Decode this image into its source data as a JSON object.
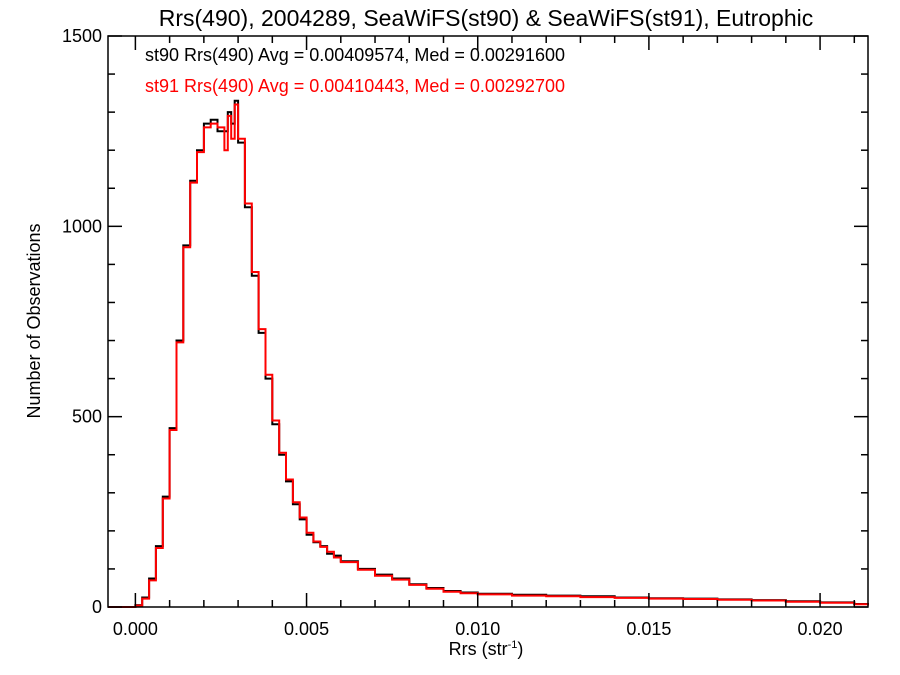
{
  "chart_data": {
    "type": "line",
    "title": "Rrs(490), 2004289, SeaWiFS(st90) & SeaWiFS(st91), Eutrophic",
    "xlabel": "Rrs (str",
    "xlabel_sup": "-1",
    "xlabel_close": ")",
    "ylabel": "Number of Observations",
    "xlim": [
      -0.0008,
      0.0214
    ],
    "ylim": [
      0,
      1500
    ],
    "x_ticks": [
      0.0,
      0.005,
      0.01,
      0.015,
      0.02
    ],
    "x_tick_labels": [
      "0.000",
      "0.005",
      "0.010",
      "0.015",
      "0.020"
    ],
    "y_ticks": [
      0,
      500,
      1000,
      1500
    ],
    "y_tick_labels": [
      "0",
      "500",
      "1000",
      "1500"
    ],
    "grid": false,
    "step": "histogram",
    "annotations": [
      {
        "text": "st90 Rrs(490) Avg = 0.00409574, Med = 0.00291600",
        "color": "#000000"
      },
      {
        "text": "st91 Rrs(490) Avg = 0.00410443, Med = 0.00292700",
        "color": "#ff0000"
      }
    ],
    "series": [
      {
        "color": "#000000",
        "x": [
          -0.0008,
          -0.0004,
          0.0,
          0.0002,
          0.0004,
          0.0006,
          0.0008,
          0.001,
          0.0012,
          0.0014,
          0.0016,
          0.0018,
          0.002,
          0.0022,
          0.0024,
          0.0026,
          0.0027,
          0.0028,
          0.0029,
          0.003,
          0.0032,
          0.0034,
          0.0036,
          0.0038,
          0.004,
          0.0042,
          0.0044,
          0.0046,
          0.0048,
          0.005,
          0.0052,
          0.0054,
          0.0056,
          0.0058,
          0.006,
          0.0065,
          0.007,
          0.0075,
          0.008,
          0.0085,
          0.009,
          0.0095,
          0.01,
          0.011,
          0.012,
          0.013,
          0.014,
          0.015,
          0.016,
          0.017,
          0.018,
          0.019,
          0.02,
          0.021,
          0.0214
        ],
        "values": [
          0,
          0,
          5,
          25,
          75,
          160,
          290,
          470,
          700,
          950,
          1120,
          1200,
          1270,
          1280,
          1250,
          1250,
          1300,
          1270,
          1330,
          1220,
          1050,
          870,
          720,
          600,
          480,
          400,
          330,
          270,
          230,
          190,
          170,
          160,
          140,
          135,
          120,
          100,
          85,
          75,
          60,
          50,
          42,
          38,
          35,
          32,
          30,
          28,
          25,
          23,
          22,
          20,
          18,
          15,
          12,
          8,
          5
        ]
      },
      {
        "color": "#ff0000",
        "x": [
          -0.0008,
          -0.0004,
          0.0,
          0.0002,
          0.0004,
          0.0006,
          0.0008,
          0.001,
          0.0012,
          0.0014,
          0.0016,
          0.0018,
          0.002,
          0.0022,
          0.0024,
          0.0026,
          0.0027,
          0.0028,
          0.0029,
          0.003,
          0.0032,
          0.0034,
          0.0036,
          0.0038,
          0.004,
          0.0042,
          0.0044,
          0.0046,
          0.0048,
          0.005,
          0.0052,
          0.0054,
          0.0056,
          0.0058,
          0.006,
          0.0065,
          0.007,
          0.0075,
          0.008,
          0.0085,
          0.009,
          0.0095,
          0.01,
          0.011,
          0.012,
          0.013,
          0.014,
          0.015,
          0.016,
          0.017,
          0.018,
          0.019,
          0.02,
          0.021,
          0.0214
        ],
        "values": [
          0,
          0,
          4,
          22,
          70,
          155,
          285,
          465,
          695,
          945,
          1115,
          1195,
          1260,
          1270,
          1260,
          1200,
          1290,
          1230,
          1320,
          1230,
          1060,
          880,
          730,
          610,
          490,
          405,
          335,
          275,
          235,
          195,
          172,
          158,
          145,
          130,
          118,
          98,
          82,
          72,
          58,
          48,
          40,
          36,
          33,
          30,
          28,
          26,
          24,
          22,
          21,
          19,
          17,
          14,
          11,
          7,
          4
        ]
      }
    ]
  }
}
